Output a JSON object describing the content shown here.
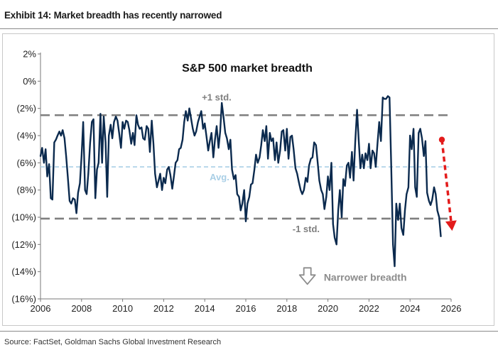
{
  "exhibit_title": "Exhibit 14: Market breadth has recently narrowed",
  "source": "Source: FactSet, Goldman Sachs Global Investment Research",
  "colors": {
    "series": "#0b2a4e",
    "std_line": "#7f7f7f",
    "avg_line": "#a9cfe6",
    "arrow": "#e31b1b",
    "annotation": "#8c8c8c"
  },
  "chart_data": {
    "type": "line",
    "title": "S&P 500 market breadth",
    "xlabel": "",
    "ylabel": "",
    "xlim": [
      2006,
      2026
    ],
    "ylim": [
      -16,
      2
    ],
    "x_ticks": [
      2006,
      2008,
      2010,
      2012,
      2014,
      2016,
      2018,
      2020,
      2022,
      2024,
      2026
    ],
    "x_tick_labels": [
      "2006",
      "2008",
      "2010",
      "2012",
      "2014",
      "2016",
      "2018",
      "2020",
      "2022",
      "2024",
      "2026"
    ],
    "y_ticks": [
      2,
      0,
      -2,
      -4,
      -6,
      -8,
      -10,
      -12,
      -14,
      -16
    ],
    "y_tick_labels": [
      "2%",
      "0%",
      "(2%)",
      "(4%)",
      "(6%)",
      "(8%)",
      "(10%)",
      "(12%)",
      "(14%)",
      "(16%)"
    ],
    "grid": false,
    "reference_lines": [
      {
        "label": "+1 std.",
        "value": -2.5,
        "style": "dashed",
        "color": "#7f7f7f"
      },
      {
        "label": "Avg.",
        "value": -6.3,
        "style": "dashed",
        "color": "#a9cfe6"
      },
      {
        "label": "-1 std.",
        "value": -10.1,
        "style": "dashed",
        "color": "#7f7f7f"
      }
    ],
    "annotations": [
      {
        "text": "Narrower breadth",
        "x": 2019.8,
        "y": -14.4,
        "icon": "down-arrow-icon"
      }
    ],
    "trend_arrow": {
      "x": [
        2025.55,
        2026.05
      ],
      "y": [
        -4.3,
        -11.0
      ],
      "color": "#e31b1b"
    },
    "series": [
      {
        "x": [
          2006.0,
          2006.08,
          2006.17,
          2006.25,
          2006.33,
          2006.42,
          2006.5,
          2006.58,
          2006.67,
          2006.75,
          2006.83,
          2006.92,
          2007.0,
          2007.08,
          2007.17,
          2007.25,
          2007.33,
          2007.42,
          2007.5,
          2007.58,
          2007.67,
          2007.75,
          2007.83,
          2007.92,
          2008.0,
          2008.08,
          2008.17,
          2008.25,
          2008.33,
          2008.42,
          2008.5,
          2008.58,
          2008.67,
          2008.75,
          2008.83,
          2008.92,
          2009.0,
          2009.08,
          2009.17,
          2009.25,
          2009.33,
          2009.42,
          2009.5,
          2009.58,
          2009.67,
          2009.75,
          2009.83,
          2009.92,
          2010.0,
          2010.08,
          2010.17,
          2010.25,
          2010.33,
          2010.42,
          2010.5,
          2010.58,
          2010.67,
          2010.75,
          2010.83,
          2010.92,
          2011.0,
          2011.08,
          2011.17,
          2011.25,
          2011.33,
          2011.42,
          2011.5,
          2011.58,
          2011.67,
          2011.75,
          2011.83,
          2011.92,
          2012.0,
          2012.08,
          2012.17,
          2012.25,
          2012.33,
          2012.42,
          2012.5,
          2012.58,
          2012.67,
          2012.75,
          2012.83,
          2012.92,
          2013.0,
          2013.08,
          2013.17,
          2013.25,
          2013.33,
          2013.42,
          2013.5,
          2013.58,
          2013.67,
          2013.75,
          2013.83,
          2013.92,
          2014.0,
          2014.08,
          2014.17,
          2014.25,
          2014.33,
          2014.42,
          2014.5,
          2014.58,
          2014.67,
          2014.75,
          2014.83,
          2014.92,
          2015.0,
          2015.08,
          2015.17,
          2015.25,
          2015.33,
          2015.42,
          2015.5,
          2015.58,
          2015.67,
          2015.75,
          2015.83,
          2015.92,
          2016.0,
          2016.08,
          2016.17,
          2016.25,
          2016.33,
          2016.42,
          2016.5,
          2016.58,
          2016.67,
          2016.75,
          2016.83,
          2016.92,
          2017.0,
          2017.08,
          2017.17,
          2017.25,
          2017.33,
          2017.42,
          2017.5,
          2017.58,
          2017.67,
          2017.75,
          2017.83,
          2017.92,
          2018.0,
          2018.08,
          2018.17,
          2018.25,
          2018.33,
          2018.42,
          2018.5,
          2018.58,
          2018.67,
          2018.75,
          2018.83,
          2018.92,
          2019.0,
          2019.08,
          2019.17,
          2019.25,
          2019.33,
          2019.42,
          2019.5,
          2019.58,
          2019.67,
          2019.75,
          2019.83,
          2019.92,
          2020.0,
          2020.08,
          2020.17,
          2020.25,
          2020.33,
          2020.42,
          2020.5,
          2020.58,
          2020.67,
          2020.75,
          2020.83,
          2020.92,
          2021.0,
          2021.08,
          2021.17,
          2021.25,
          2021.33,
          2021.42,
          2021.5,
          2021.58,
          2021.67,
          2021.75,
          2021.83,
          2021.92,
          2022.0,
          2022.08,
          2022.17,
          2022.25,
          2022.33,
          2022.42,
          2022.5,
          2022.58,
          2022.67,
          2022.75,
          2022.83,
          2022.92,
          2023.0,
          2023.08,
          2023.17,
          2023.25,
          2023.33,
          2023.42,
          2023.5,
          2023.58,
          2023.67,
          2023.75,
          2023.83,
          2023.92,
          2024.0,
          2024.08,
          2024.17,
          2024.25,
          2024.33,
          2024.42,
          2024.5,
          2024.58,
          2024.67,
          2024.75,
          2024.83,
          2024.92,
          2025.0,
          2025.08,
          2025.17,
          2025.25,
          2025.33,
          2025.42,
          2025.5
        ],
        "values": [
          -5.5,
          -4.9,
          -6.0,
          -5.0,
          -7.0,
          -6.1,
          -8.6,
          -8.7,
          -4.5,
          -4.3,
          -4.0,
          -3.7,
          -4.0,
          -3.6,
          -4.2,
          -5.5,
          -7.0,
          -8.8,
          -9.0,
          -8.6,
          -8.7,
          -9.7,
          -8.2,
          -7.5,
          -5.5,
          -3.0,
          -8.0,
          -8.3,
          -6.8,
          -4.5,
          -3.0,
          -2.8,
          -8.6,
          -6.5,
          -6.0,
          -2.4,
          -6.0,
          -2.6,
          -4.5,
          -8.5,
          -4.0,
          -3.2,
          -4.2,
          -3.0,
          -2.6,
          -2.9,
          -3.8,
          -4.9,
          -3.0,
          -3.5,
          -2.9,
          -3.0,
          -3.6,
          -4.6,
          -3.8,
          -4.7,
          -2.5,
          -3.2,
          -3.5,
          -3.4,
          -4.2,
          -4.3,
          -3.3,
          -3.5,
          -5.2,
          -2.9,
          -4.6,
          -6.8,
          -7.8,
          -7.3,
          -6.8,
          -8.0,
          -7.1,
          -7.5,
          -6.5,
          -6.3,
          -6.9,
          -7.9,
          -7.0,
          -6.0,
          -5.8,
          -5.0,
          -4.9,
          -4.3,
          -3.0,
          -2.2,
          -2.9,
          -2.0,
          -2.7,
          -3.5,
          -4.0,
          -3.7,
          -3.0,
          -2.6,
          -2.2,
          -3.5,
          -3.1,
          -4.0,
          -5.1,
          -4.4,
          -3.8,
          -5.6,
          -4.3,
          -3.3,
          -4.9,
          -3.7,
          -1.6,
          -2.7,
          -3.8,
          -4.2,
          -5.0,
          -4.3,
          -6.5,
          -7.2,
          -6.9,
          -8.3,
          -8.5,
          -9.5,
          -9.0,
          -8.0,
          -10.3,
          -9.0,
          -8.5,
          -7.6,
          -7.5,
          -6.5,
          -5.4,
          -6.0,
          -5.6,
          -4.7,
          -3.6,
          -4.4,
          -3.3,
          -5.7,
          -3.8,
          -4.4,
          -4.2,
          -5.8,
          -4.5,
          -6.0,
          -5.1,
          -3.7,
          -3.6,
          -5.1,
          -3.5,
          -5.7,
          -4.1,
          -4.0,
          -5.0,
          -6.4,
          -6.8,
          -7.4,
          -8.0,
          -8.3,
          -8.0,
          -7.1,
          -7.4,
          -6.2,
          -5.7,
          -5.6,
          -4.5,
          -4.7,
          -6.0,
          -7.3,
          -8.0,
          -8.3,
          -9.4,
          -8.5,
          -7.0,
          -8.0,
          -6.0,
          -10.5,
          -11.5,
          -12.0,
          -9.5,
          -8.0,
          -10.0,
          -7.2,
          -7.7,
          -6.2,
          -6.0,
          -7.1,
          -5.2,
          -7.3,
          -4.5,
          -2.1,
          -4.3,
          -6.4,
          -5.4,
          -6.4,
          -5.3,
          -5.8,
          -4.6,
          -6.4,
          -5.1,
          -5.3,
          -6.3,
          -4.5,
          -3.0,
          -4.4,
          -1.2,
          -1.3,
          -1.3,
          -1.1,
          -1.2,
          -6.0,
          -12.0,
          -13.6,
          -9.0,
          -10.2,
          -9.0,
          -10.8,
          -11.3,
          -9.5,
          -8.3,
          -7.8,
          -4.0,
          -5.0,
          -3.5,
          -7.8,
          -8.5,
          -3.8,
          -3.5,
          -4.2,
          -5.5,
          -4.4,
          -8.2,
          -8.8,
          -9.1,
          -8.7,
          -7.8,
          -8.3,
          -9.5,
          -10.0,
          -11.4
        ]
      }
    ]
  }
}
